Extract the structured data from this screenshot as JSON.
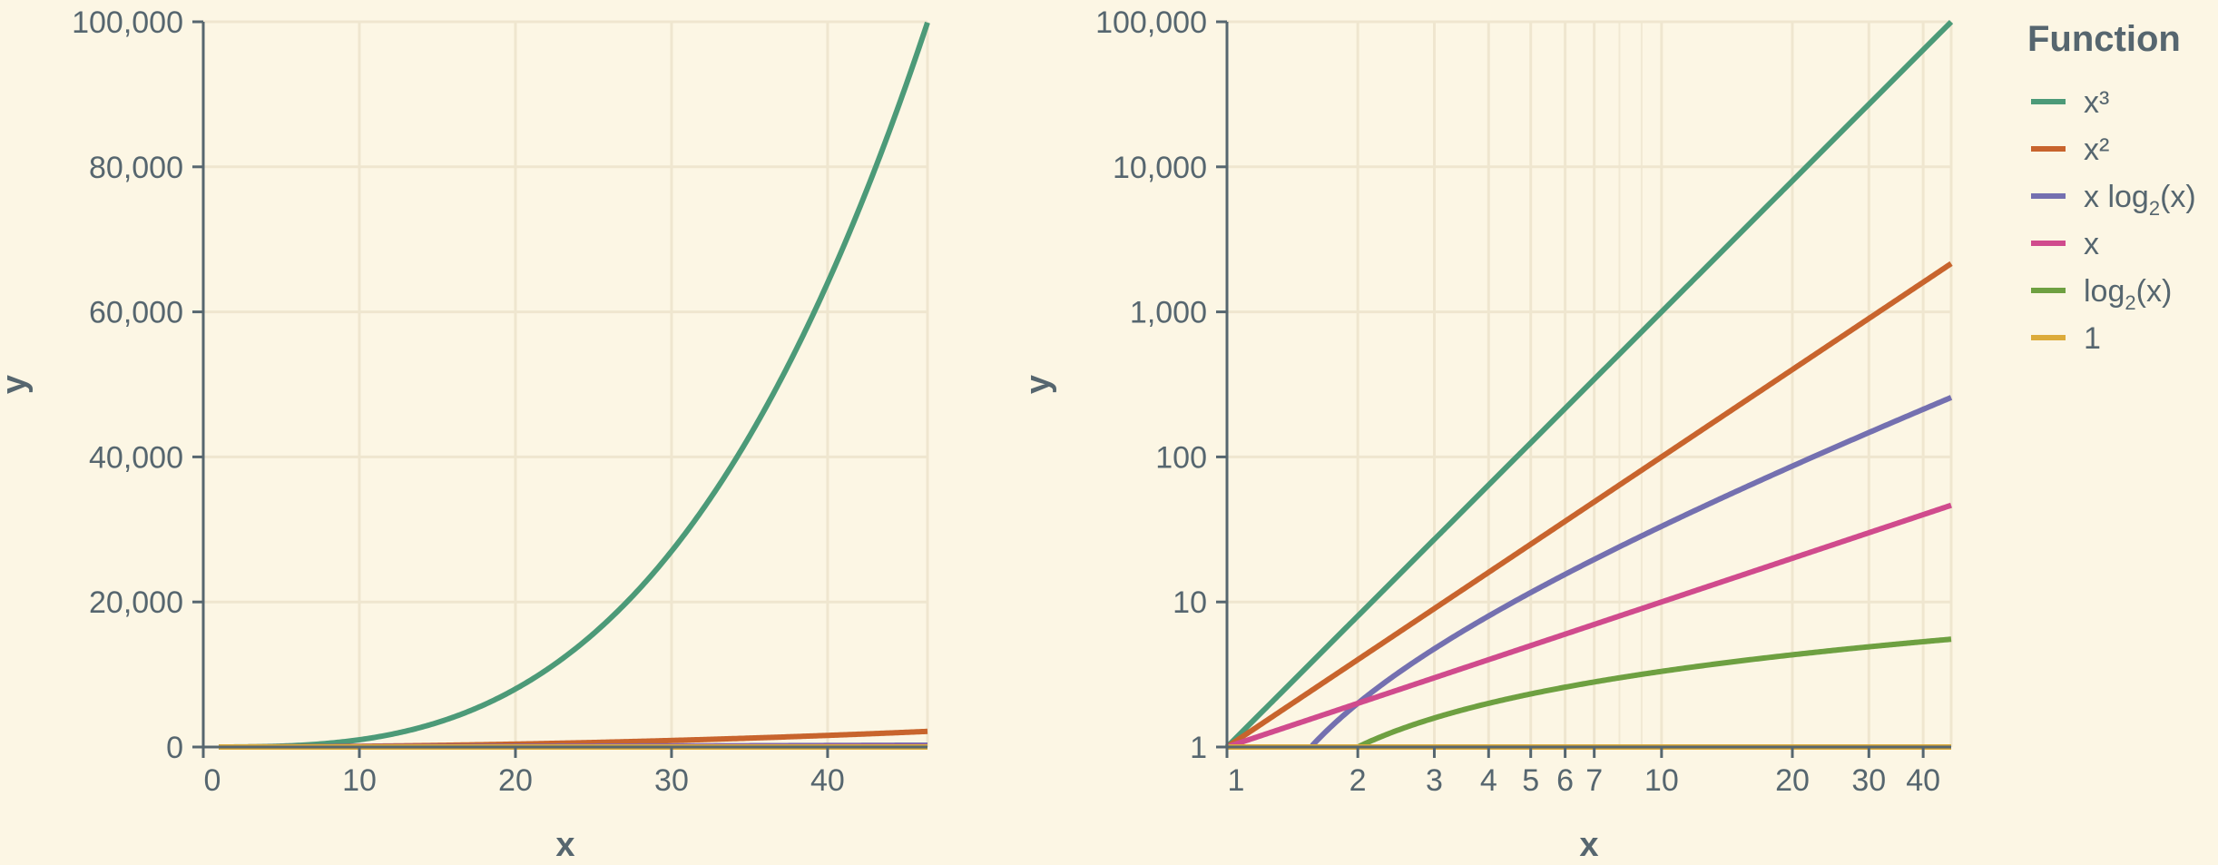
{
  "chart_data": [
    {
      "type": "line",
      "title": "",
      "xlabel": "x",
      "ylabel": "y",
      "xlim": [
        0,
        46.4
      ],
      "ylim": [
        0,
        100000
      ],
      "xscale": "linear",
      "yscale": "linear",
      "grid": true,
      "xticks": [
        0,
        10,
        20,
        30,
        40
      ],
      "xtick_labels": [
        "0",
        "10",
        "20",
        "30",
        "40"
      ],
      "yticks": [
        0,
        20000,
        40000,
        60000,
        80000,
        100000
      ],
      "ytick_labels": [
        "0",
        "20,000",
        "40,000",
        "60,000",
        "80,000",
        "100,000"
      ],
      "x_domain": [
        1,
        46.4
      ],
      "series": [
        {
          "name": "x³",
          "func": "cube",
          "color": "#4c9a78"
        },
        {
          "name": "x²",
          "func": "square",
          "color": "#c8642d"
        },
        {
          "name": "x log2(x)",
          "func": "xlogx",
          "color": "#7470b0"
        },
        {
          "name": "x",
          "func": "identity",
          "color": "#d04b8d"
        },
        {
          "name": "log2(x)",
          "func": "log2",
          "color": "#6ea041"
        },
        {
          "name": "1",
          "func": "const",
          "color": "#dcab3a"
        }
      ]
    },
    {
      "type": "line",
      "title": "",
      "xlabel": "x",
      "ylabel": "y",
      "xlim": [
        1,
        46.4
      ],
      "ylim": [
        1,
        100000
      ],
      "xscale": "log",
      "yscale": "log",
      "grid": true,
      "xticks": [
        1,
        2,
        3,
        4,
        5,
        6,
        7,
        10,
        20,
        30,
        40
      ],
      "xtick_labels": [
        "1",
        "2",
        "3",
        "4",
        "5",
        "6",
        "7",
        "10",
        "20",
        "30",
        "40"
      ],
      "x_minor_grid": [
        8,
        9
      ],
      "yticks": [
        1,
        10,
        100,
        1000,
        10000,
        100000
      ],
      "ytick_labels": [
        "1",
        "10",
        "100",
        "1,000",
        "10,000",
        "100,000"
      ],
      "x_domain": [
        1,
        46.4
      ],
      "series": [
        {
          "name": "x³",
          "func": "cube",
          "color": "#4c9a78"
        },
        {
          "name": "x²",
          "func": "square",
          "color": "#c8642d"
        },
        {
          "name": "x log2(x)",
          "func": "xlogx",
          "color": "#7470b0"
        },
        {
          "name": "x",
          "func": "identity",
          "color": "#d04b8d"
        },
        {
          "name": "log2(x)",
          "func": "log2",
          "color": "#6ea041"
        },
        {
          "name": "1",
          "func": "const",
          "color": "#dcab3a"
        }
      ]
    }
  ],
  "legend": {
    "title": "Function",
    "placement": "right",
    "entries": [
      {
        "label": "x³",
        "color": "#4c9a78"
      },
      {
        "label": "x²",
        "color": "#c8642d"
      },
      {
        "label": "x log",
        "sub": "2",
        "after": "(x)",
        "color": "#7470b0"
      },
      {
        "label": "x",
        "color": "#d04b8d"
      },
      {
        "label": "log",
        "sub": "2",
        "after": "(x)",
        "color": "#6ea041"
      },
      {
        "label": "1",
        "color": "#dcab3a"
      }
    ]
  }
}
